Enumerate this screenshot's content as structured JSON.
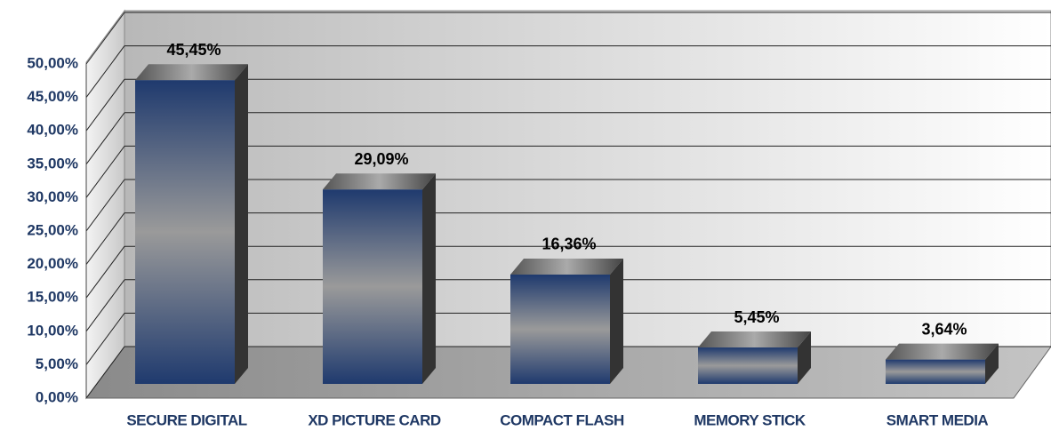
{
  "chart_data": {
    "type": "bar3d",
    "categories": [
      "SECURE DIGITAL",
      "XD PICTURE CARD",
      "COMPACT FLASH",
      "MEMORY STICK",
      "SMART MEDIA"
    ],
    "values": [
      45.45,
      29.09,
      16.36,
      5.45,
      3.64
    ],
    "value_labels": [
      "45,45%",
      "29,09%",
      "16,36%",
      "5,45%",
      "3,64%"
    ],
    "ylim": [
      0,
      50
    ],
    "yticks": [
      {
        "value": 0,
        "label": "0,00%"
      },
      {
        "value": 5,
        "label": "5,00%"
      },
      {
        "value": 10,
        "label": "10,00%"
      },
      {
        "value": 15,
        "label": "15,00%"
      },
      {
        "value": 20,
        "label": "20,00%"
      },
      {
        "value": 25,
        "label": "25,00%"
      },
      {
        "value": 30,
        "label": "30,00%"
      },
      {
        "value": 35,
        "label": "35,00%"
      },
      {
        "value": 40,
        "label": "40,00%"
      },
      {
        "value": 45,
        "label": "45,00%"
      },
      {
        "value": 50,
        "label": "50,00%"
      }
    ],
    "grid": true,
    "color": "#1f3a6e"
  }
}
